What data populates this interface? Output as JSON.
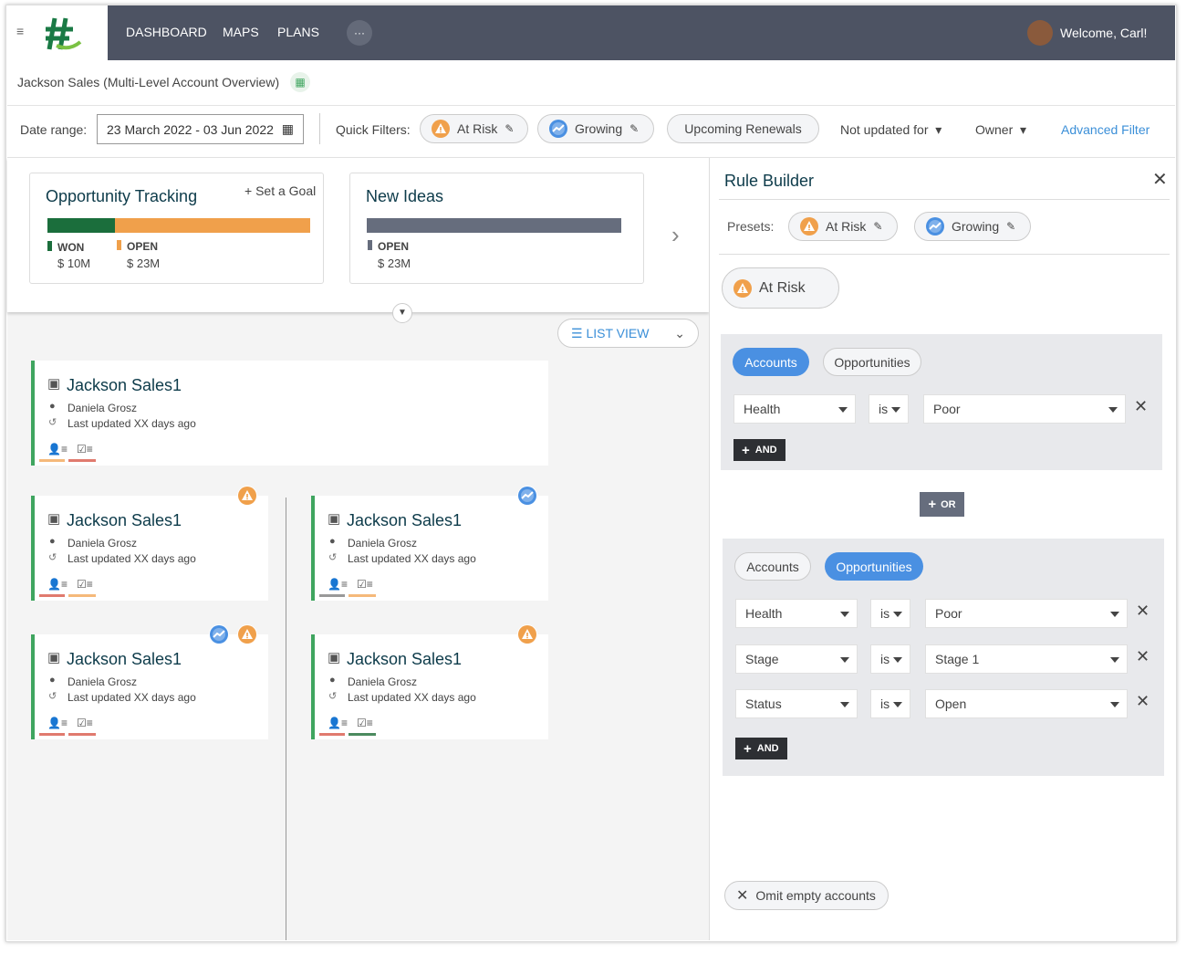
{
  "nav": {
    "items": [
      "DASHBOARD",
      "MAPS",
      "PLANS"
    ],
    "more": "···",
    "welcome": "Welcome, Carl!"
  },
  "page_title": "Jackson Sales (Multi-Level Account Overview)",
  "filters": {
    "date_label": "Date range:",
    "date_value": "23 March 2022 - 03 Jun 2022",
    "quick_label": "Quick Filters:",
    "chips": [
      "At Risk",
      "Growing",
      "Upcoming Renewals"
    ],
    "dropdowns": [
      "Not updated for",
      "Owner"
    ],
    "advanced": "Advanced Filter"
  },
  "summary_cards": [
    {
      "title": "Opportunity Tracking",
      "action": "+ Set a Goal",
      "legend": [
        {
          "label": "WON",
          "value": "$ 10M"
        },
        {
          "label": "OPEN",
          "value": "$ 23M"
        }
      ]
    },
    {
      "title": "New Ideas",
      "legend": [
        {
          "label": "OPEN",
          "value": "$ 23M"
        }
      ]
    }
  ],
  "list_view": "LIST VIEW",
  "accounts": [
    {
      "name": "Jackson Sales1",
      "owner": "Daniela Grosz",
      "updated": "Last updated XX days ago"
    },
    {
      "name": "Jackson Sales1",
      "owner": "Daniela Grosz",
      "updated": "Last updated XX days ago"
    },
    {
      "name": "Jackson Sales1",
      "owner": "Daniela Grosz",
      "updated": "Last updated XX days ago"
    },
    {
      "name": "Jackson Sales1",
      "owner": "Daniela Grosz",
      "updated": "Last updated XX days ago"
    },
    {
      "name": "Jackson Sales1",
      "owner": "Daniela Grosz",
      "updated": "Last updated XX days ago"
    }
  ],
  "rule_builder": {
    "title": "Rule Builder",
    "presets_label": "Presets:",
    "presets": [
      "At Risk",
      "Growing"
    ],
    "active_preset": "At Risk",
    "groups": [
      {
        "tabs": [
          {
            "label": "Accounts",
            "selected": true
          },
          {
            "label": "Opportunities",
            "selected": false
          }
        ],
        "rules": [
          [
            "Health",
            "is",
            "Poor"
          ]
        ],
        "and": "AND"
      },
      {
        "tabs": [
          {
            "label": "Accounts",
            "selected": false
          },
          {
            "label": "Opportunities",
            "selected": true
          }
        ],
        "rules": [
          [
            "Health",
            "is",
            "Poor"
          ],
          [
            "Stage",
            "is",
            "Stage 1"
          ],
          [
            "Status",
            "is",
            "Open"
          ]
        ],
        "and": "AND"
      }
    ],
    "or": "OR",
    "omit": "Omit empty accounts"
  }
}
